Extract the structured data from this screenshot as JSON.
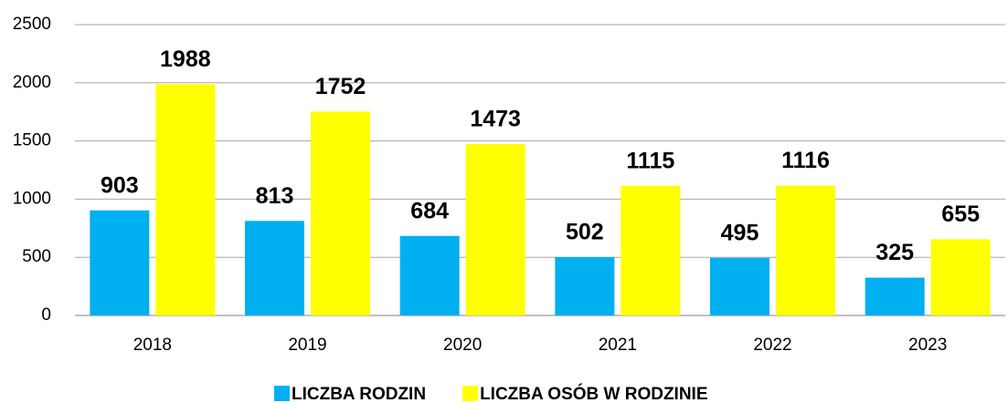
{
  "chart_data": {
    "type": "bar",
    "categories": [
      "2018",
      "2019",
      "2020",
      "2021",
      "2022",
      "2023"
    ],
    "series": [
      {
        "name": "LICZBA RODZIN",
        "color": "#00b0f0",
        "values": [
          903,
          813,
          684,
          502,
          495,
          325
        ]
      },
      {
        "name": "LICZBA OSÓB W RODZINIE",
        "color": "#ffff00",
        "values": [
          1988,
          1752,
          1473,
          1115,
          1116,
          655
        ]
      }
    ],
    "ylim": [
      0,
      2500
    ],
    "yticks": [
      0,
      500,
      1000,
      1500,
      2000,
      2500
    ],
    "grid": true,
    "legend": "bottom"
  }
}
